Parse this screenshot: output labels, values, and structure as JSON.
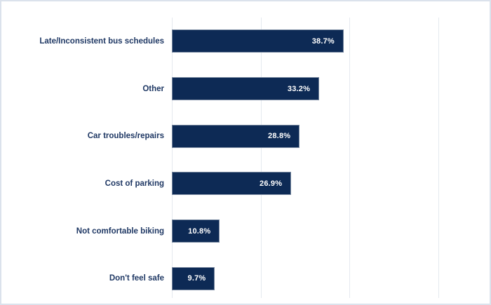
{
  "frame": {
    "background": "#ffffff",
    "border_color": "#dbe2ec"
  },
  "chart_data": {
    "type": "bar",
    "orientation": "horizontal",
    "title": "",
    "xlabel": "",
    "ylabel": "",
    "categories": [
      "Late/Inconsistent bus schedules",
      "Other",
      "Car troubles/repairs",
      "Cost of parking",
      "Not comfortable biking",
      "Don't feel safe"
    ],
    "values": [
      38.7,
      33.2,
      28.8,
      26.9,
      10.8,
      9.7
    ],
    "value_labels": [
      "38.7%",
      "33.2%",
      "28.8%",
      "26.9%",
      "10.8%",
      "9.7%"
    ],
    "xlim": [
      0,
      70
    ],
    "gridlines": [
      0,
      20,
      40,
      60
    ],
    "grid": "vertical-only",
    "legend": "none",
    "axis_tick_labels_visible": false,
    "bar_color": "#0d2a55",
    "bar_border_color": "rgba(255,255,255,0.45)",
    "category_label_color": "#1f3864",
    "value_label_color": "#ffffff",
    "gridline_color": "#e5e9ef"
  }
}
